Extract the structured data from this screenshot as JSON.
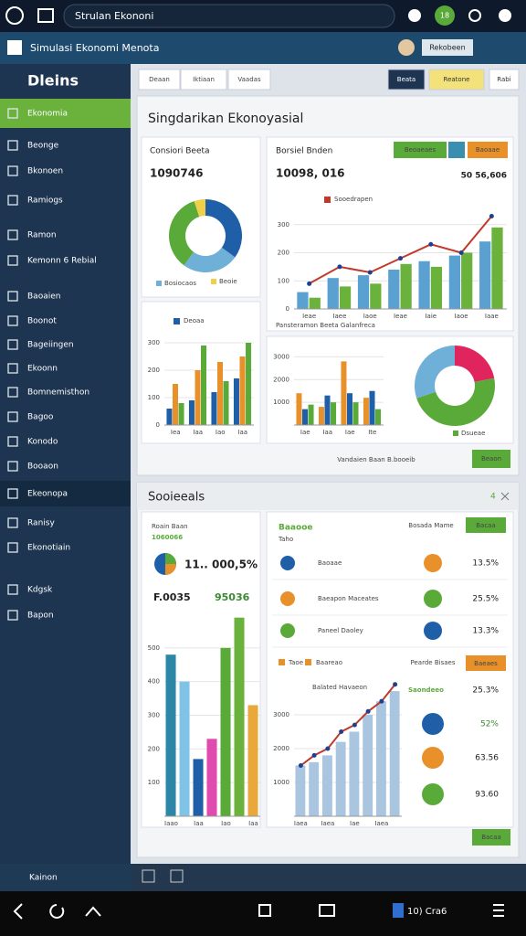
{
  "header": {
    "search": "Strulan Ekononi",
    "badge": "18"
  },
  "appbar": {
    "title": "Simulasi Ekonomi Menota",
    "button": "Rekobeen"
  },
  "sidebar": {
    "title": "Dleins",
    "items": [
      "Ekonomia",
      "Beonge",
      "Bkonoen",
      "Ramiogs",
      "Ramon",
      "Kemonn 6 Rebial",
      "Baoaien",
      "Boonot",
      "Bageiingen",
      "Ekoonn",
      "Bomnemisthon",
      "Bagoo",
      "Konodo",
      "Booaon",
      "Ekeonopa",
      "Ranisy",
      "Ekonotiain",
      "Kdgsk",
      "Bapon"
    ],
    "footer": "Kainon"
  },
  "toolbar": {
    "tabs": [
      "Deaan",
      "Iktiaan",
      "Vaadas"
    ],
    "buttons": [
      "Beata",
      "Reatone",
      "Rabi"
    ]
  },
  "panel1": {
    "title": "Singdarikan Ekonoyasial",
    "card1": {
      "title": "Consiori Beeta",
      "value": "1090746"
    },
    "card2": {
      "title": "Borsiel Bnden",
      "value": "10098, 016",
      "note": "50 56,606",
      "buttons": [
        "Beoaeaes",
        "Baoaae"
      ]
    },
    "caption": "Pansteramon Beeta Galanfreca",
    "footer_note": "Vandaien Baan B.booeib",
    "button": "Beaon"
  },
  "panel2": {
    "title": "Sooieeals",
    "count": "4",
    "left": {
      "title": "Roain Baan",
      "value": "1060066",
      "stat": "11.. 000,5%",
      "a": "F.0035",
      "b": "95036"
    },
    "right": {
      "title": "Baaooe",
      "sub": "Taho",
      "header_right": "Bosada Mame",
      "button": "Bacaa",
      "rows": [
        {
          "label": "Baoaae",
          "value": "13.5%"
        },
        {
          "label": "Baeapon Maceates",
          "value": "25.5%"
        },
        {
          "label": "Paneel Daoley",
          "value": "13.3%"
        }
      ],
      "mid_left": "Taoe",
      "mid_center": "Baareao",
      "mid_right": "Pearde Bisaes",
      "mid_button": "Baeaes",
      "chart_title": "Balated Havaeon",
      "list_title": "Saondeeo",
      "list_values": [
        "25.3%",
        "52%",
        "63.56",
        "93.60"
      ]
    }
  },
  "nav": {
    "status": "10) Cra6"
  },
  "chart_data": [
    {
      "type": "pie",
      "categories": [
        null,
        "Bosiocaos",
        null,
        "Beoie"
      ],
      "values": [
        35,
        25,
        35,
        5
      ],
      "colors": [
        "#1f5fa8",
        "#6fb0d8",
        "#5aaa3a",
        "#f0d048"
      ]
    },
    {
      "type": "bar",
      "categories": [
        "Ieae",
        "Iaee",
        "Iaoe",
        "Ieae",
        "Iaie",
        "Iaoe",
        "Iaae"
      ],
      "ylim": [
        0,
        400
      ],
      "yticks": [
        0,
        100,
        200,
        300
      ],
      "series": [
        {
          "color": "#5aa0d0",
          "values": [
            60,
            110,
            120,
            140,
            170,
            190,
            240
          ]
        },
        {
          "color": "#6ab23c",
          "values": [
            40,
            80,
            90,
            160,
            150,
            200,
            290
          ]
        },
        {
          "name": "Sooedrapen",
          "type": "line",
          "color": "#c0392b",
          "values": [
            90,
            150,
            130,
            180,
            230,
            200,
            330
          ]
        }
      ]
    },
    {
      "type": "bar",
      "categories": [
        "Iea",
        "Iaa",
        "Iao",
        "Iaa"
      ],
      "ylim": [
        0,
        350
      ],
      "yticks": [
        0,
        100,
        200,
        300
      ],
      "series": [
        {
          "name": "Deoaa",
          "color": "#1f5fa8",
          "values": [
            60,
            90,
            120,
            170
          ]
        },
        {
          "color": "#e8902a",
          "values": [
            150,
            200,
            230,
            250
          ]
        },
        {
          "color": "#5aaa3a",
          "values": [
            80,
            290,
            160,
            300
          ]
        }
      ]
    },
    {
      "type": "bar",
      "categories": [
        "Iae",
        "Iaa",
        "Iae",
        "Ite"
      ],
      "ylim": [
        0,
        3500
      ],
      "yticks": [
        1000,
        2000,
        3000
      ],
      "series": [
        {
          "color": "#e8902a",
          "values": [
            1400,
            800,
            2800,
            1200
          ]
        },
        {
          "color": "#1f5fa8",
          "values": [
            700,
            1300,
            1400,
            1500
          ]
        },
        {
          "color": "#5aaa3a",
          "values": [
            900,
            1000,
            1000,
            700
          ]
        }
      ]
    },
    {
      "type": "pie",
      "categories": [
        null,
        "Dsueae",
        null
      ],
      "values": [
        22,
        48,
        30
      ],
      "colors": [
        "#e0245e",
        "#5aaa3a",
        "#6fb0d8"
      ]
    },
    {
      "type": "bar",
      "categories": [
        "Iaao",
        null,
        "Iaa",
        null,
        "Iao",
        null,
        "Iaa"
      ],
      "ylim": [
        0,
        600
      ],
      "yticks": [
        100,
        200,
        300,
        400,
        500
      ],
      "series": [
        {
          "colors": [
            "#2b86a8",
            "#7fc3e6",
            "#1f5fa8",
            "#e04bb0",
            "#5aaa3a",
            "#6ab23c",
            "#e8a83a"
          ],
          "values": [
            480,
            400,
            170,
            230,
            500,
            590,
            330
          ]
        }
      ]
    },
    {
      "type": "bar",
      "categories": [
        "Iaea",
        null,
        "Iaea",
        null,
        "Iae",
        null,
        "Iaea",
        null
      ],
      "ylim": [
        0,
        4000
      ],
      "yticks": [
        1000,
        2000,
        3000
      ],
      "series": [
        {
          "color": "#a9c5e0",
          "values": [
            1500,
            1600,
            1800,
            2200,
            2500,
            3000,
            3400,
            3700
          ]
        },
        {
          "type": "line",
          "color": "#c0392b",
          "values": [
            1500,
            1800,
            2000,
            2500,
            2700,
            3100,
            3400,
            3900
          ]
        }
      ]
    }
  ]
}
